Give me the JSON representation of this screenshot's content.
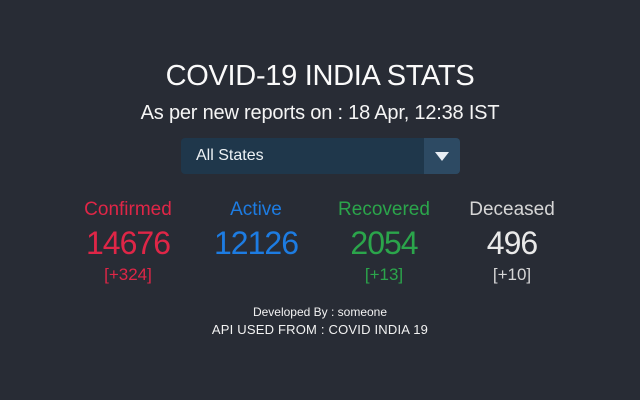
{
  "window": {
    "background_color": "#282c35"
  },
  "header": {
    "title": "COVID-19 INDIA STATS",
    "subtitle": "As per new reports on : 18 Apr, 12:38 IST"
  },
  "state_selector": {
    "selected_option": "All States",
    "icon": "chevron-down-icon",
    "body_color": "#1f374b",
    "button_color": "#2d4a63"
  },
  "stats": {
    "columns": [
      {
        "label": "Confirmed",
        "value": "14676",
        "delta": "[+324]",
        "color": "#df2647"
      },
      {
        "label": "Active",
        "value": "12126",
        "delta": "",
        "color": "#1d7ce2"
      },
      {
        "label": "Recovered",
        "value": "2054",
        "delta": "[+13]",
        "color": "#2ba54b"
      },
      {
        "label": "Deceased",
        "value": "496",
        "delta": "[+10]",
        "color": "#d9d9d9"
      }
    ]
  },
  "footer": {
    "developed_by": "Developed By : someone",
    "api_source": "API USED FROM : COVID INDIA 19"
  }
}
